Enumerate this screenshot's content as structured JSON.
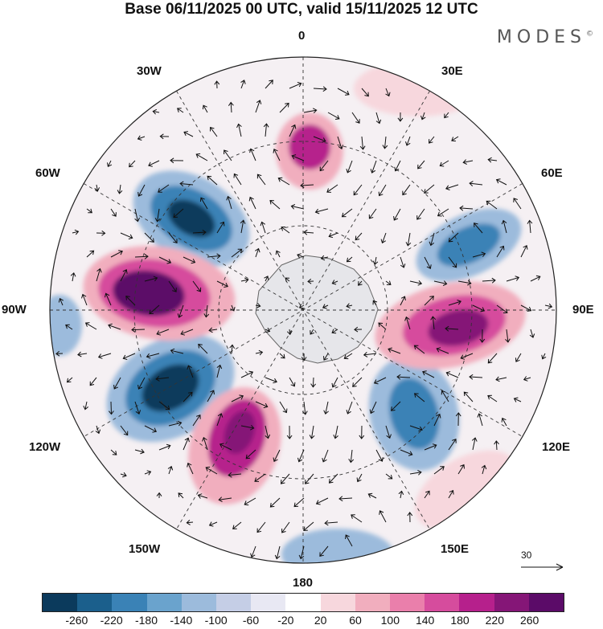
{
  "title": "Base 06/11/2025 00 UTC, valid 15/11/2025 12 UTC",
  "brand": "MODES",
  "brand_mark": "©",
  "labels": {
    "top": "0",
    "bottom": "180",
    "left": "90W",
    "right": "90E",
    "w30": "30W",
    "e30": "30E",
    "w60": "60W",
    "e60": "60E",
    "w120": "120W",
    "e120": "120E",
    "w150": "150W",
    "e150": "150E"
  },
  "reference_vector": "30",
  "colorbar": {
    "colors": [
      "#0b3a5c",
      "#1b5f8c",
      "#3a82b6",
      "#6aa3cd",
      "#9cbbdc",
      "#c5cee6",
      "#e8e8f3",
      "#ffffff",
      "#f7d7dd",
      "#f1aebe",
      "#ea7fab",
      "#d64c9d",
      "#b6208c",
      "#851677",
      "#5b0b68"
    ],
    "ticks": [
      "-260",
      "-220",
      "-180",
      "-140",
      "-100",
      "-60",
      "-20",
      "20",
      "60",
      "100",
      "140",
      "180",
      "220",
      "260"
    ]
  }
}
